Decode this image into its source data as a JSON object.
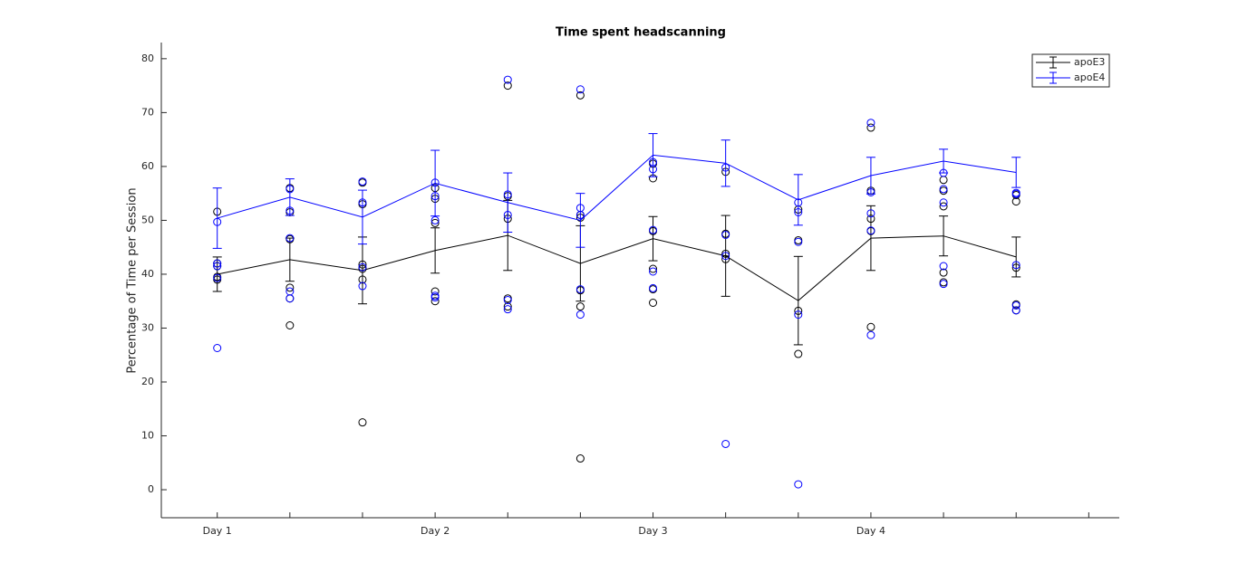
{
  "chart_data": {
    "type": "line",
    "title": "Time spent headscanning",
    "y_label": "Percentage of Time per Session",
    "x": [
      1,
      2,
      3,
      4,
      5,
      6,
      7,
      8,
      9,
      10,
      11,
      12
    ],
    "xlim": [
      0.23,
      13.42
    ],
    "xticks": [
      {
        "value": 1,
        "label": "Day 1"
      },
      {
        "value": 2,
        "label": null
      },
      {
        "value": 3,
        "label": null
      },
      {
        "value": 4,
        "label": "Day 2"
      },
      {
        "value": 5,
        "label": null
      },
      {
        "value": 6,
        "label": null
      },
      {
        "value": 7,
        "label": "Day 3"
      },
      {
        "value": 8,
        "label": null
      },
      {
        "value": 9,
        "label": null
      },
      {
        "value": 10,
        "label": "Day 4"
      },
      {
        "value": 11,
        "label": null
      },
      {
        "value": 12,
        "label": null
      },
      {
        "value": 13,
        "label": null
      }
    ],
    "ylim": [
      -5.2,
      83
    ],
    "yticks": [
      0,
      10,
      20,
      30,
      40,
      50,
      60,
      70,
      80
    ],
    "legend": "northeast",
    "series": [
      {
        "name": "apoE3",
        "color": "#000000",
        "values": [
          40.0,
          42.7,
          40.7,
          44.4,
          47.2,
          42.0,
          46.6,
          43.4,
          35.1,
          46.7,
          47.1,
          43.2
        ],
        "errors": [
          3.2,
          4.0,
          6.2,
          4.2,
          6.5,
          7.0,
          4.1,
          7.5,
          8.2,
          6.0,
          3.7,
          3.7
        ],
        "points": [
          [
            51.6,
            42.0,
            41.5,
            39.5,
            39.0
          ],
          [
            56.0,
            51.5,
            46.5,
            37.5,
            30.5,
            35.5
          ],
          [
            57.0,
            53.0,
            41.8,
            41.0,
            39.0,
            12.5
          ],
          [
            56.0,
            54.0,
            49.5,
            36.8,
            35.0
          ],
          [
            75.0,
            54.5,
            50.3,
            35.5,
            34.0
          ],
          [
            73.2,
            51.0,
            50.5,
            37.0,
            34.0,
            5.8
          ],
          [
            60.5,
            57.8,
            48.0,
            41.0,
            37.2,
            34.7
          ],
          [
            59.0,
            47.5,
            43.8,
            42.8
          ],
          [
            52.0,
            46.3,
            33.2,
            25.2
          ],
          [
            67.2,
            55.5,
            50.3,
            48.0,
            30.2
          ],
          [
            57.5,
            55.5,
            52.6,
            40.3,
            38.5
          ],
          [
            54.7,
            53.5,
            41.2,
            34.4,
            33.3
          ]
        ]
      },
      {
        "name": "apoE4",
        "color": "#0000ff",
        "values": [
          50.4,
          54.3,
          50.6,
          56.9,
          53.3,
          50.0,
          62.1,
          60.6,
          53.8,
          58.3,
          61.0,
          58.9
        ],
        "errors": [
          5.6,
          3.4,
          5.0,
          6.1,
          5.5,
          5.0,
          4.0,
          4.3,
          4.7,
          3.4,
          2.2,
          2.8
        ],
        "points": [
          [
            49.7,
            42.0,
            41.5,
            39.3,
            26.3
          ],
          [
            55.8,
            51.8,
            46.7,
            36.8,
            35.5
          ],
          [
            57.2,
            53.3,
            41.3,
            37.8
          ],
          [
            57.0,
            54.5,
            50.0,
            36.0,
            35.7
          ],
          [
            76.1,
            54.8,
            51.0,
            35.2,
            33.5
          ],
          [
            74.3,
            52.3,
            51.0,
            37.2,
            32.5
          ],
          [
            60.8,
            59.5,
            48.2,
            40.5,
            37.4
          ],
          [
            59.8,
            47.3,
            43.4,
            8.5
          ],
          [
            53.3,
            51.5,
            46.0,
            32.5,
            1.0
          ],
          [
            68.1,
            55.2,
            51.3,
            48.1,
            28.7
          ],
          [
            58.8,
            55.8,
            53.3,
            41.5,
            38.2
          ],
          [
            55.1,
            54.9,
            41.7,
            34.2,
            33.3
          ]
        ]
      }
    ]
  }
}
